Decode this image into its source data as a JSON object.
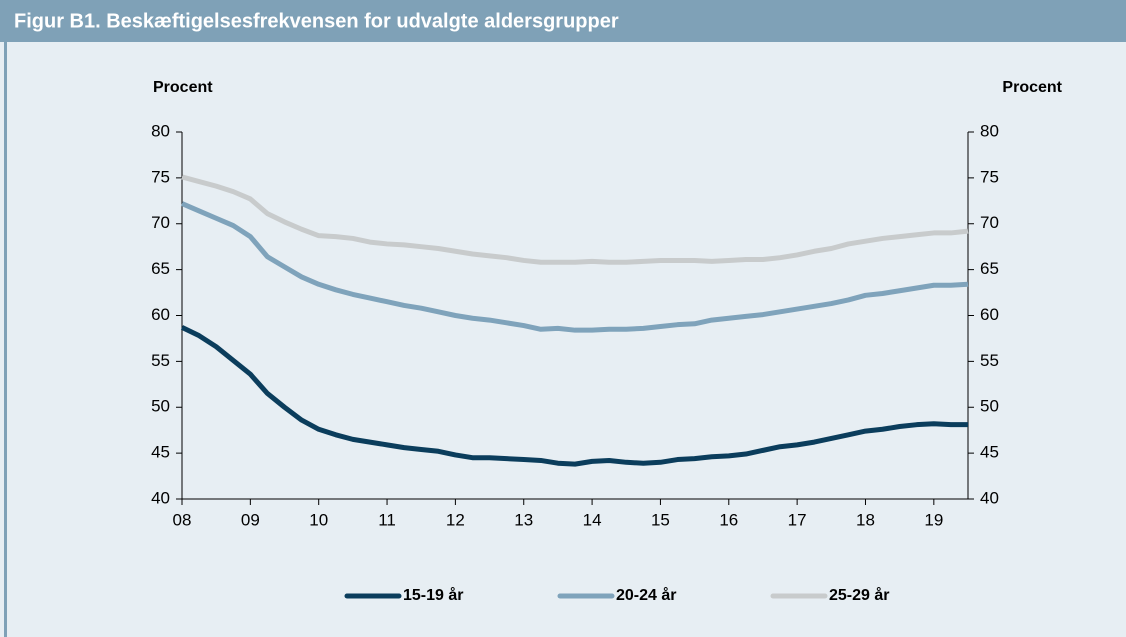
{
  "chart_data": {
    "type": "line",
    "title": "Figur B1. Beskæftigelsesfrekvensen for udvalgte aldersgrupper",
    "y_label": "Procent",
    "y2_label": "Procent",
    "x": [
      2008,
      2008.25,
      2008.5,
      2008.75,
      2009,
      2009.25,
      2009.5,
      2009.75,
      2010,
      2010.25,
      2010.5,
      2010.75,
      2011,
      2011.25,
      2011.5,
      2011.75,
      2012,
      2012.25,
      2012.5,
      2012.75,
      2013,
      2013.25,
      2013.5,
      2013.75,
      2014,
      2014.25,
      2014.5,
      2014.75,
      2015,
      2015.25,
      2015.5,
      2015.75,
      2016,
      2016.25,
      2016.5,
      2016.75,
      2017,
      2017.25,
      2017.5,
      2017.75,
      2018,
      2018.25,
      2018.5,
      2018.75,
      2019,
      2019.25,
      2019.5
    ],
    "xlim": [
      2008,
      2019.5
    ],
    "xticks": [
      {
        "value": 2008,
        "label": "08"
      },
      {
        "value": 2009,
        "label": "09"
      },
      {
        "value": 2010,
        "label": "10"
      },
      {
        "value": 2011,
        "label": "11"
      },
      {
        "value": 2012,
        "label": "12"
      },
      {
        "value": 2013,
        "label": "13"
      },
      {
        "value": 2014,
        "label": "14"
      },
      {
        "value": 2015,
        "label": "15"
      },
      {
        "value": 2016,
        "label": "16"
      },
      {
        "value": 2017,
        "label": "17"
      },
      {
        "value": 2018,
        "label": "18"
      },
      {
        "value": 2019,
        "label": "19"
      }
    ],
    "ylim": [
      40,
      80
    ],
    "yticks": [
      40,
      45,
      50,
      55,
      60,
      65,
      70,
      75,
      80
    ],
    "y2lim": [
      40,
      80
    ],
    "y2ticks": [
      40,
      45,
      50,
      55,
      60,
      65,
      70,
      75,
      80
    ],
    "legend": "bottom",
    "series": [
      {
        "name": "15-19 år",
        "color": "#0b3d5c",
        "values": [
          58.7,
          57.8,
          56.6,
          55.1,
          53.6,
          51.5,
          50.0,
          48.6,
          47.6,
          47.0,
          46.5,
          46.2,
          45.9,
          45.6,
          45.4,
          45.2,
          44.8,
          44.5,
          44.5,
          44.4,
          44.3,
          44.2,
          43.9,
          43.8,
          44.1,
          44.2,
          44.0,
          43.9,
          44.0,
          44.3,
          44.4,
          44.6,
          44.7,
          44.9,
          45.3,
          45.7,
          45.9,
          46.2,
          46.6,
          47.0,
          47.4,
          47.6,
          47.9,
          48.1,
          48.2,
          48.1,
          48.1
        ]
      },
      {
        "name": "20-24 år",
        "color": "#7fa3bb",
        "values": [
          72.2,
          71.4,
          70.6,
          69.8,
          68.6,
          66.4,
          65.3,
          64.2,
          63.4,
          62.8,
          62.3,
          61.9,
          61.5,
          61.1,
          60.8,
          60.4,
          60.0,
          59.7,
          59.5,
          59.2,
          58.9,
          58.5,
          58.6,
          58.4,
          58.4,
          58.5,
          58.5,
          58.6,
          58.8,
          59.0,
          59.1,
          59.5,
          59.7,
          59.9,
          60.1,
          60.4,
          60.7,
          61.0,
          61.3,
          61.7,
          62.2,
          62.4,
          62.7,
          63.0,
          63.3,
          63.3,
          63.4
        ]
      },
      {
        "name": "25-29 år",
        "color": "#c8cbcc",
        "values": [
          75.1,
          74.6,
          74.1,
          73.5,
          72.7,
          71.1,
          70.2,
          69.4,
          68.7,
          68.6,
          68.4,
          68.0,
          67.8,
          67.7,
          67.5,
          67.3,
          67.0,
          66.7,
          66.5,
          66.3,
          66.0,
          65.8,
          65.8,
          65.8,
          65.9,
          65.8,
          65.8,
          65.9,
          66.0,
          66.0,
          66.0,
          65.9,
          66.0,
          66.1,
          66.1,
          66.3,
          66.6,
          67.0,
          67.3,
          67.8,
          68.1,
          68.4,
          68.6,
          68.8,
          69.0,
          69.0,
          69.2
        ]
      }
    ]
  }
}
